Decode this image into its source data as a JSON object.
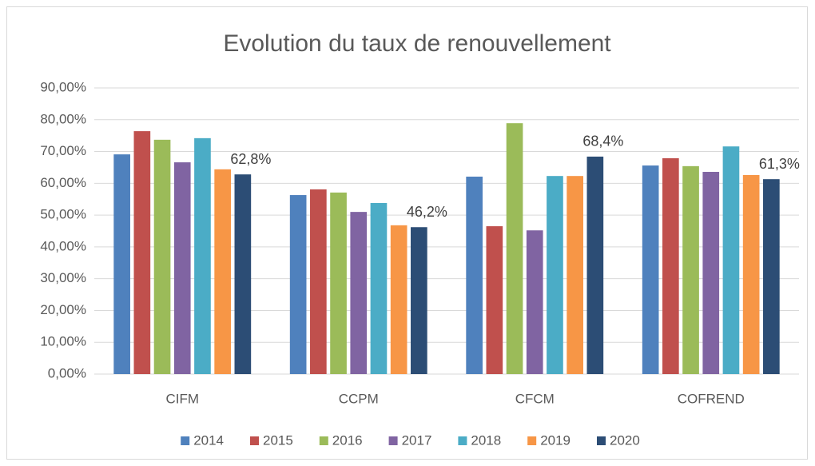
{
  "chart_data": {
    "type": "bar",
    "title": "Evolution du taux de renouvellement",
    "categories": [
      "CIFM",
      "CCPM",
      "CFCM",
      "COFREND"
    ],
    "series": [
      {
        "name": "2014",
        "color": "#4f81bd",
        "values": [
          69.1,
          56.3,
          62.1,
          65.6
        ]
      },
      {
        "name": "2015",
        "color": "#c0504d",
        "values": [
          76.4,
          58.1,
          46.5,
          67.9
        ]
      },
      {
        "name": "2016",
        "color": "#9bbb59",
        "values": [
          73.7,
          57.1,
          78.9,
          65.4
        ]
      },
      {
        "name": "2017",
        "color": "#8064a2",
        "values": [
          66.6,
          51.0,
          45.2,
          63.6
        ]
      },
      {
        "name": "2018",
        "color": "#4bacc6",
        "values": [
          74.2,
          53.8,
          62.3,
          71.6
        ]
      },
      {
        "name": "2019",
        "color": "#f79646",
        "values": [
          64.4,
          46.8,
          62.3,
          62.6
        ]
      },
      {
        "name": "2020",
        "color": "#2c4d75",
        "values": [
          62.8,
          46.2,
          68.4,
          61.3
        ],
        "value_labels": [
          "62,8%",
          "46,2%",
          "68,4%",
          "61,3%"
        ]
      }
    ],
    "ylim": [
      0,
      90
    ],
    "yticks": [
      {
        "value": 0,
        "label": "0,00%"
      },
      {
        "value": 10,
        "label": "10,00%"
      },
      {
        "value": 20,
        "label": "20,00%"
      },
      {
        "value": 30,
        "label": "30,00%"
      },
      {
        "value": 40,
        "label": "40,00%"
      },
      {
        "value": 50,
        "label": "50,00%"
      },
      {
        "value": 60,
        "label": "60,00%"
      },
      {
        "value": 70,
        "label": "70,00%"
      },
      {
        "value": 80,
        "label": "80,00%"
      },
      {
        "value": 90,
        "label": "90,00%"
      }
    ],
    "grid": true,
    "legend": "bottom"
  }
}
